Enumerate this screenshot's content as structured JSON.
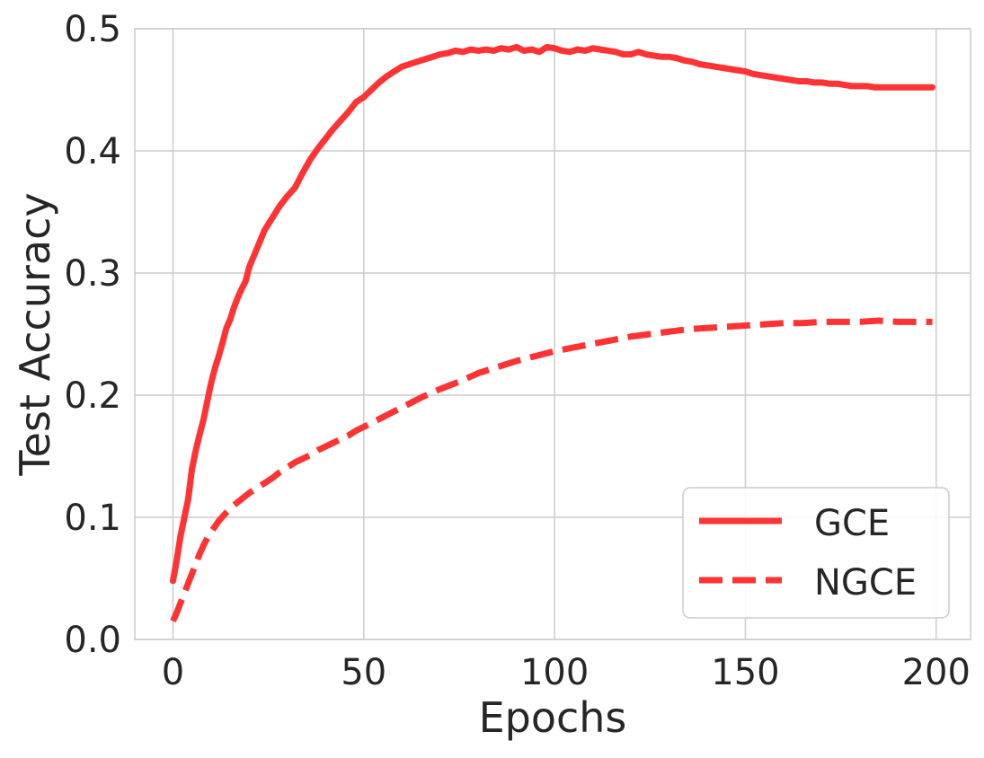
{
  "chart_data": {
    "type": "line",
    "title": "",
    "xlabel": "Epochs",
    "ylabel": "Test Accuracy",
    "xlim": [
      -10,
      209
    ],
    "ylim": [
      0.0,
      0.5
    ],
    "xticks": [
      0,
      50,
      100,
      150,
      200
    ],
    "yticks": [
      0.0,
      0.1,
      0.2,
      0.3,
      0.4,
      0.5
    ],
    "xtick_labels": [
      "0",
      "50",
      "100",
      "150",
      "200"
    ],
    "ytick_labels": [
      "0.0",
      "0.1",
      "0.2",
      "0.3",
      "0.4",
      "0.5"
    ],
    "grid": true,
    "legend_position": "lower-right",
    "series": [
      {
        "name": "GCE",
        "style": "solid",
        "color": "#ff3333",
        "points": [
          [
            0,
            0.048
          ],
          [
            1,
            0.065
          ],
          [
            2,
            0.085
          ],
          [
            3,
            0.1
          ],
          [
            4,
            0.115
          ],
          [
            5,
            0.14
          ],
          [
            6,
            0.155
          ],
          [
            7,
            0.168
          ],
          [
            8,
            0.18
          ],
          [
            9,
            0.195
          ],
          [
            10,
            0.21
          ],
          [
            11,
            0.222
          ],
          [
            12,
            0.232
          ],
          [
            13,
            0.243
          ],
          [
            14,
            0.255
          ],
          [
            15,
            0.262
          ],
          [
            16,
            0.272
          ],
          [
            17,
            0.28
          ],
          [
            18,
            0.287
          ],
          [
            19,
            0.293
          ],
          [
            20,
            0.305
          ],
          [
            22,
            0.32
          ],
          [
            24,
            0.335
          ],
          [
            26,
            0.345
          ],
          [
            28,
            0.355
          ],
          [
            30,
            0.363
          ],
          [
            32,
            0.37
          ],
          [
            34,
            0.382
          ],
          [
            36,
            0.393
          ],
          [
            38,
            0.402
          ],
          [
            40,
            0.41
          ],
          [
            42,
            0.418
          ],
          [
            44,
            0.425
          ],
          [
            46,
            0.432
          ],
          [
            48,
            0.44
          ],
          [
            50,
            0.444
          ],
          [
            52,
            0.45
          ],
          [
            54,
            0.456
          ],
          [
            56,
            0.461
          ],
          [
            58,
            0.465
          ],
          [
            60,
            0.469
          ],
          [
            62,
            0.471
          ],
          [
            64,
            0.473
          ],
          [
            66,
            0.475
          ],
          [
            68,
            0.477
          ],
          [
            70,
            0.479
          ],
          [
            72,
            0.48
          ],
          [
            74,
            0.482
          ],
          [
            76,
            0.481
          ],
          [
            78,
            0.483
          ],
          [
            80,
            0.482
          ],
          [
            82,
            0.483
          ],
          [
            84,
            0.482
          ],
          [
            86,
            0.484
          ],
          [
            88,
            0.483
          ],
          [
            90,
            0.485
          ],
          [
            92,
            0.482
          ],
          [
            94,
            0.483
          ],
          [
            96,
            0.481
          ],
          [
            98,
            0.485
          ],
          [
            100,
            0.484
          ],
          [
            102,
            0.482
          ],
          [
            104,
            0.481
          ],
          [
            106,
            0.483
          ],
          [
            108,
            0.482
          ],
          [
            110,
            0.484
          ],
          [
            112,
            0.483
          ],
          [
            114,
            0.482
          ],
          [
            116,
            0.481
          ],
          [
            118,
            0.479
          ],
          [
            120,
            0.479
          ],
          [
            122,
            0.481
          ],
          [
            124,
            0.479
          ],
          [
            126,
            0.478
          ],
          [
            128,
            0.477
          ],
          [
            130,
            0.477
          ],
          [
            132,
            0.476
          ],
          [
            134,
            0.474
          ],
          [
            136,
            0.473
          ],
          [
            138,
            0.471
          ],
          [
            140,
            0.47
          ],
          [
            142,
            0.469
          ],
          [
            144,
            0.468
          ],
          [
            146,
            0.467
          ],
          [
            148,
            0.466
          ],
          [
            150,
            0.465
          ],
          [
            152,
            0.463
          ],
          [
            154,
            0.462
          ],
          [
            156,
            0.461
          ],
          [
            158,
            0.46
          ],
          [
            160,
            0.459
          ],
          [
            162,
            0.458
          ],
          [
            164,
            0.457
          ],
          [
            166,
            0.457
          ],
          [
            168,
            0.456
          ],
          [
            170,
            0.456
          ],
          [
            172,
            0.455
          ],
          [
            174,
            0.455
          ],
          [
            176,
            0.454
          ],
          [
            178,
            0.453
          ],
          [
            180,
            0.453
          ],
          [
            182,
            0.453
          ],
          [
            184,
            0.452
          ],
          [
            186,
            0.452
          ],
          [
            188,
            0.452
          ],
          [
            190,
            0.452
          ],
          [
            192,
            0.452
          ],
          [
            194,
            0.452
          ],
          [
            196,
            0.452
          ],
          [
            198,
            0.452
          ],
          [
            199,
            0.452
          ]
        ]
      },
      {
        "name": "NGCE",
        "style": "dashed",
        "color": "#ff3333",
        "points": [
          [
            0,
            0.015
          ],
          [
            1,
            0.022
          ],
          [
            2,
            0.03
          ],
          [
            3,
            0.038
          ],
          [
            4,
            0.046
          ],
          [
            5,
            0.054
          ],
          [
            6,
            0.062
          ],
          [
            7,
            0.07
          ],
          [
            8,
            0.077
          ],
          [
            9,
            0.083
          ],
          [
            10,
            0.088
          ],
          [
            12,
            0.097
          ],
          [
            14,
            0.104
          ],
          [
            16,
            0.11
          ],
          [
            18,
            0.115
          ],
          [
            20,
            0.12
          ],
          [
            22,
            0.124
          ],
          [
            24,
            0.128
          ],
          [
            26,
            0.132
          ],
          [
            28,
            0.137
          ],
          [
            30,
            0.141
          ],
          [
            32,
            0.145
          ],
          [
            34,
            0.148
          ],
          [
            36,
            0.151
          ],
          [
            38,
            0.155
          ],
          [
            40,
            0.158
          ],
          [
            42,
            0.161
          ],
          [
            44,
            0.164
          ],
          [
            46,
            0.167
          ],
          [
            48,
            0.171
          ],
          [
            50,
            0.174
          ],
          [
            55,
            0.182
          ],
          [
            60,
            0.19
          ],
          [
            65,
            0.198
          ],
          [
            70,
            0.205
          ],
          [
            75,
            0.211
          ],
          [
            80,
            0.218
          ],
          [
            85,
            0.223
          ],
          [
            90,
            0.228
          ],
          [
            95,
            0.232
          ],
          [
            100,
            0.236
          ],
          [
            105,
            0.239
          ],
          [
            110,
            0.242
          ],
          [
            115,
            0.245
          ],
          [
            120,
            0.248
          ],
          [
            125,
            0.25
          ],
          [
            130,
            0.252
          ],
          [
            135,
            0.254
          ],
          [
            140,
            0.255
          ],
          [
            145,
            0.256
          ],
          [
            150,
            0.257
          ],
          [
            155,
            0.258
          ],
          [
            160,
            0.259
          ],
          [
            165,
            0.259
          ],
          [
            170,
            0.26
          ],
          [
            175,
            0.26
          ],
          [
            180,
            0.26
          ],
          [
            185,
            0.261
          ],
          [
            190,
            0.26
          ],
          [
            195,
            0.26
          ],
          [
            199,
            0.26
          ]
        ]
      }
    ]
  }
}
